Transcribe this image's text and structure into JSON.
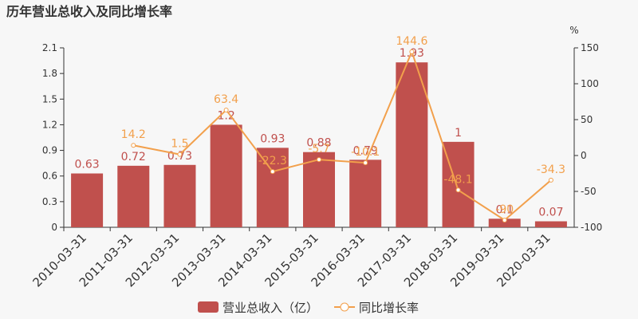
{
  "chart_data": {
    "type": "bar",
    "title": "历年营业总收入及同比增长率",
    "y2_unit": "%",
    "categories": [
      "2010-03-31",
      "2011-03-31",
      "2012-03-31",
      "2013-03-31",
      "2014-03-31",
      "2015-03-31",
      "2016-03-31",
      "2017-03-31",
      "2018-03-31",
      "2019-03-31",
      "2020-03-31"
    ],
    "series": [
      {
        "name": "营业总收入（亿）",
        "type": "bar",
        "color": "#c0504d",
        "values": [
          0.63,
          0.72,
          0.73,
          1.2,
          0.93,
          0.88,
          0.79,
          1.93,
          1,
          0.1,
          0.07
        ]
      },
      {
        "name": "同比增长率",
        "type": "line",
        "axis": "y2",
        "color": "#f2a04c",
        "values": [
          null,
          14.2,
          1.5,
          63.4,
          -22.3,
          -5.7,
          -10.1,
          144.6,
          -48.1,
          -90,
          -34.3
        ]
      }
    ],
    "ylim": [
      0,
      2.1
    ],
    "yticks": [
      0,
      0.3,
      0.6,
      0.9,
      1.2,
      1.5,
      1.8,
      2.1
    ],
    "y2lim": [
      -100,
      150
    ],
    "y2ticks": [
      -100,
      -50,
      0,
      50,
      100,
      150
    ]
  }
}
